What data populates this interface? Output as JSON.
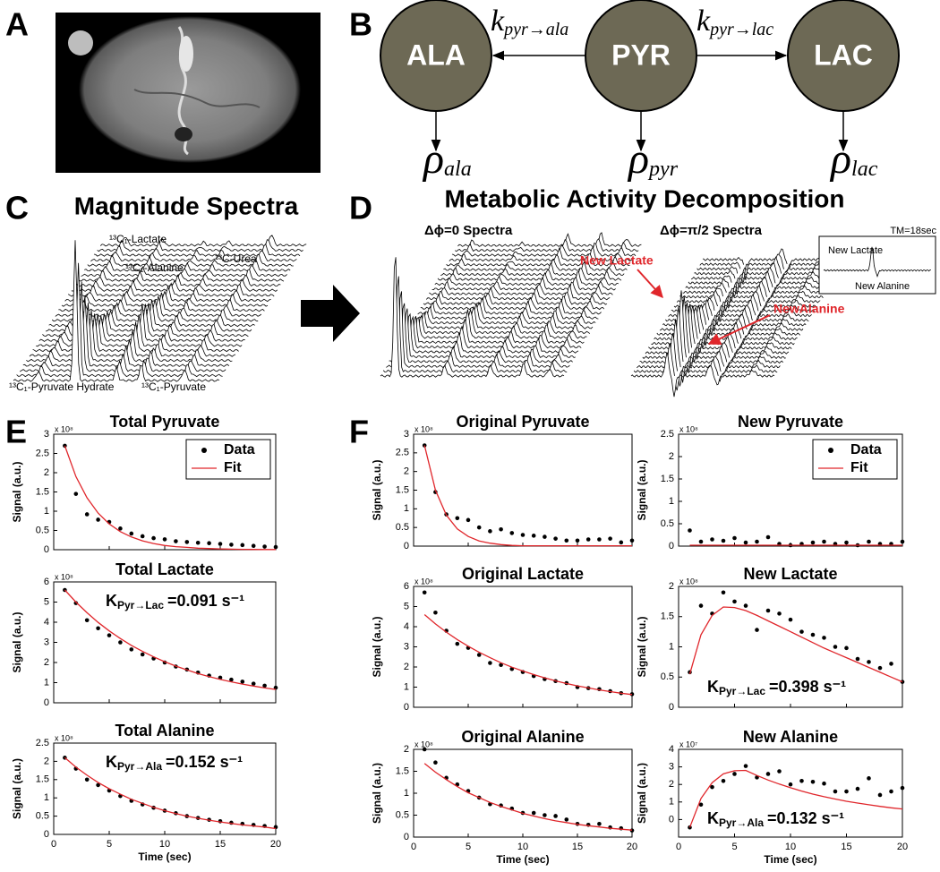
{
  "panel_letters": [
    "A",
    "B",
    "C",
    "D",
    "E",
    "F"
  ],
  "diagram": {
    "nodes": [
      "ALA",
      "PYR",
      "LAC"
    ],
    "rates": [
      {
        "symbol": "k",
        "subscript": "pyr→ala"
      },
      {
        "symbol": "k",
        "subscript": "pyr→lac"
      }
    ],
    "decay": [
      {
        "symbol": "ρ",
        "subscript": "ala"
      },
      {
        "symbol": "ρ",
        "subscript": "pyr"
      },
      {
        "symbol": "ρ",
        "subscript": "lac"
      }
    ]
  },
  "spectra": {
    "magnitude_title": "Magnitude Spectra",
    "magnitude_labels": [
      "¹³C₁-Lactate",
      "¹³C₁-Alanine",
      "¹³C-Urea",
      "¹³C₁-Pyruvate Hydrate",
      "¹³C₁-Pyruvate"
    ],
    "decomposition_title": "Metabolic Activity Decomposition",
    "subtitles": [
      "Δϕ=0 Spectra",
      "Δϕ=π/2 Spectra"
    ],
    "annotations": [
      "New Lactate",
      "NewAlanine"
    ],
    "inset": {
      "title": "TM=18sec",
      "labels": [
        "New Lactate",
        "New Alanine"
      ]
    }
  },
  "chart_data": [
    {
      "type": "scatter",
      "title": "Total Pyruvate",
      "ylabel": "Signal (a.u.)",
      "y_multiplier": "x 10⁸",
      "x": [
        1,
        2,
        3,
        4,
        5,
        6,
        7,
        8,
        9,
        10,
        11,
        12,
        13,
        14,
        15,
        16,
        17,
        18,
        19,
        20
      ],
      "xlim": [
        0,
        20
      ],
      "xticks": [
        0,
        5,
        10,
        15,
        20
      ],
      "xtick_labels": false,
      "ylim": [
        0,
        3
      ],
      "yticks": [
        0,
        0.5,
        1,
        1.5,
        2,
        2.5,
        3
      ],
      "legend": "upper right",
      "series": [
        {
          "name": "Data",
          "color": "#000000",
          "mode": "points",
          "values": [
            2.7,
            1.45,
            0.92,
            0.78,
            0.72,
            0.55,
            0.42,
            0.35,
            0.3,
            0.27,
            0.22,
            0.2,
            0.18,
            0.17,
            0.15,
            0.13,
            0.12,
            0.1,
            0.08,
            0.07
          ]
        },
        {
          "name": "Fit",
          "color": "#e0262b",
          "mode": "line",
          "values": [
            2.7,
            1.9,
            1.35,
            0.95,
            0.67,
            0.47,
            0.33,
            0.23,
            0.16,
            0.11,
            0.08,
            0.06,
            0.04,
            0.03,
            0.02,
            0.015,
            0.01,
            0.007,
            0.005,
            0.004
          ]
        }
      ]
    },
    {
      "type": "scatter",
      "title": "Total Lactate",
      "ylabel": "Signal (a.u.)",
      "y_multiplier": "x 10⁸",
      "x": [
        1,
        2,
        3,
        4,
        5,
        6,
        7,
        8,
        9,
        10,
        11,
        12,
        13,
        14,
        15,
        16,
        17,
        18,
        19,
        20
      ],
      "xlim": [
        0,
        20
      ],
      "xticks": [
        0,
        5,
        10,
        15,
        20
      ],
      "xtick_labels": false,
      "ylim": [
        0,
        6
      ],
      "yticks": [
        0,
        1,
        2,
        3,
        4,
        5,
        6
      ],
      "annotation": {
        "symbol": "K",
        "subscript": "Pyr→Lac",
        "text": "=0.091 s⁻¹"
      },
      "series": [
        {
          "color": "#000000",
          "mode": "points",
          "values": [
            5.6,
            4.95,
            4.1,
            3.7,
            3.35,
            3.0,
            2.65,
            2.4,
            2.2,
            2.0,
            1.8,
            1.65,
            1.5,
            1.35,
            1.25,
            1.15,
            1.05,
            0.95,
            0.85,
            0.75
          ]
        },
        {
          "color": "#e0262b",
          "mode": "line",
          "values": [
            5.6,
            5.0,
            4.47,
            3.99,
            3.57,
            3.19,
            2.85,
            2.55,
            2.28,
            2.04,
            1.82,
            1.63,
            1.45,
            1.3,
            1.16,
            1.04,
            0.93,
            0.83,
            0.74,
            0.66
          ]
        }
      ]
    },
    {
      "type": "scatter",
      "title": "Total Alanine",
      "ylabel": "Signal (a.u.)",
      "y_multiplier": "x 10⁸",
      "xlabel": "Time (sec)",
      "x": [
        1,
        2,
        3,
        4,
        5,
        6,
        7,
        8,
        9,
        10,
        11,
        12,
        13,
        14,
        15,
        16,
        17,
        18,
        19,
        20
      ],
      "xlim": [
        0,
        20
      ],
      "xticks": [
        0,
        5,
        10,
        15,
        20
      ],
      "ylim": [
        0,
        2.5
      ],
      "yticks": [
        0,
        0.5,
        1,
        1.5,
        2,
        2.5
      ],
      "annotation": {
        "symbol": "K",
        "subscript": "Pyr→Ala",
        "text": "=0.152 s⁻¹"
      },
      "series": [
        {
          "color": "#000000",
          "mode": "points",
          "values": [
            2.1,
            1.8,
            1.5,
            1.35,
            1.2,
            1.05,
            0.92,
            0.82,
            0.73,
            0.65,
            0.58,
            0.5,
            0.45,
            0.4,
            0.36,
            0.32,
            0.29,
            0.26,
            0.23,
            0.2
          ]
        },
        {
          "color": "#e0262b",
          "mode": "line",
          "values": [
            2.1,
            1.84,
            1.62,
            1.42,
            1.25,
            1.1,
            0.96,
            0.85,
            0.74,
            0.65,
            0.57,
            0.5,
            0.44,
            0.39,
            0.34,
            0.3,
            0.26,
            0.23,
            0.2,
            0.16
          ]
        }
      ]
    },
    {
      "type": "scatter",
      "title": "Original Pyruvate",
      "ylabel": "Signal (a.u.)",
      "y_multiplier": "x 10⁸",
      "x": [
        1,
        2,
        3,
        4,
        5,
        6,
        7,
        8,
        9,
        10,
        11,
        12,
        13,
        14,
        15,
        16,
        17,
        18,
        19,
        20
      ],
      "xlim": [
        0,
        20
      ],
      "xticks": [
        0,
        5,
        10,
        15,
        20
      ],
      "xtick_labels": false,
      "ylim": [
        0,
        3
      ],
      "yticks": [
        0,
        0.5,
        1,
        1.5,
        2,
        2.5,
        3
      ],
      "series": [
        {
          "color": "#000000",
          "mode": "points",
          "values": [
            2.7,
            1.45,
            0.85,
            0.75,
            0.7,
            0.5,
            0.4,
            0.45,
            0.35,
            0.3,
            0.28,
            0.25,
            0.2,
            0.15,
            0.15,
            0.18,
            0.18,
            0.2,
            0.1,
            0.15
          ]
        },
        {
          "color": "#e0262b",
          "mode": "line",
          "values": [
            2.7,
            1.5,
            0.83,
            0.46,
            0.26,
            0.14,
            0.08,
            0.04,
            0.02,
            0.01,
            0.01,
            0.01,
            0.01,
            0.01,
            0.01,
            0.01,
            0.01,
            0.01,
            0.01,
            0.01
          ]
        }
      ]
    },
    {
      "type": "scatter",
      "title": "New Pyruvate",
      "ylabel": "Signal (a.u.)",
      "y_multiplier": "x 10⁸",
      "x": [
        1,
        2,
        3,
        4,
        5,
        6,
        7,
        8,
        9,
        10,
        11,
        12,
        13,
        14,
        15,
        16,
        17,
        18,
        19,
        20
      ],
      "xlim": [
        0,
        20
      ],
      "xticks": [
        0,
        5,
        10,
        15,
        20
      ],
      "xtick_labels": false,
      "ylim": [
        0,
        2.5
      ],
      "yticks": [
        0,
        0.5,
        1,
        1.5,
        2,
        2.5
      ],
      "legend": "upper right",
      "series": [
        {
          "name": "Data",
          "color": "#000000",
          "mode": "points",
          "values": [
            0.35,
            0.1,
            0.15,
            0.12,
            0.18,
            0.08,
            0.1,
            0.2,
            0.05,
            0.02,
            0.05,
            0.08,
            0.1,
            0.05,
            0.08,
            0.02,
            0.1,
            0.05,
            0.05,
            0.1
          ]
        },
        {
          "name": "Fit",
          "color": "#e0262b",
          "mode": "line",
          "values": [
            0.02,
            0.02,
            0.02,
            0.02,
            0.02,
            0.02,
            0.02,
            0.02,
            0.02,
            0.02,
            0.02,
            0.02,
            0.02,
            0.02,
            0.02,
            0.02,
            0.02,
            0.02,
            0.02,
            0.02
          ]
        }
      ]
    },
    {
      "type": "scatter",
      "title": "Original Lactate",
      "ylabel": "Signal (a.u.)",
      "y_multiplier": "x 10⁸",
      "x": [
        1,
        2,
        3,
        4,
        5,
        6,
        7,
        8,
        9,
        10,
        11,
        12,
        13,
        14,
        15,
        16,
        17,
        18,
        19,
        20
      ],
      "xlim": [
        0,
        20
      ],
      "xticks": [
        0,
        5,
        10,
        15,
        20
      ],
      "xtick_labels": false,
      "ylim": [
        0,
        6
      ],
      "yticks": [
        0,
        1,
        2,
        3,
        4,
        5,
        6
      ],
      "series": [
        {
          "color": "#000000",
          "mode": "points",
          "values": [
            5.7,
            4.7,
            3.8,
            3.15,
            2.95,
            2.6,
            2.2,
            2.1,
            1.9,
            1.75,
            1.55,
            1.4,
            1.3,
            1.2,
            1.0,
            0.95,
            0.9,
            0.8,
            0.7,
            0.65
          ]
        },
        {
          "color": "#e0262b",
          "mode": "line",
          "values": [
            4.6,
            4.14,
            3.73,
            3.36,
            3.03,
            2.73,
            2.46,
            2.21,
            1.99,
            1.8,
            1.62,
            1.46,
            1.31,
            1.18,
            1.06,
            0.96,
            0.86,
            0.78,
            0.7,
            0.63
          ]
        }
      ]
    },
    {
      "type": "scatter",
      "title": "New Lactate",
      "ylabel": "Signal (a.u.)",
      "y_multiplier": "x 10⁸",
      "x": [
        1,
        2,
        3,
        4,
        5,
        6,
        7,
        8,
        9,
        10,
        11,
        12,
        13,
        14,
        15,
        16,
        17,
        18,
        19,
        20
      ],
      "xlim": [
        0,
        20
      ],
      "xticks": [
        0,
        5,
        10,
        15,
        20
      ],
      "xtick_labels": false,
      "ylim": [
        0,
        2
      ],
      "yticks": [
        0,
        0.5,
        1,
        1.5,
        2
      ],
      "annotation": {
        "symbol": "K",
        "subscript": "Pyr→Lac",
        "text": "=0.398 s⁻¹"
      },
      "series": [
        {
          "color": "#000000",
          "mode": "points",
          "values": [
            0.58,
            1.68,
            1.55,
            1.9,
            1.75,
            1.68,
            1.28,
            1.6,
            1.55,
            1.45,
            1.25,
            1.2,
            1.15,
            1.0,
            0.98,
            0.8,
            0.75,
            0.65,
            0.72,
            0.42
          ]
        },
        {
          "color": "#e0262b",
          "mode": "line",
          "values": [
            0.55,
            1.2,
            1.52,
            1.66,
            1.65,
            1.6,
            1.52,
            1.43,
            1.34,
            1.25,
            1.16,
            1.07,
            0.98,
            0.9,
            0.82,
            0.74,
            0.66,
            0.58,
            0.5,
            0.42
          ]
        }
      ]
    },
    {
      "type": "scatter",
      "title": "Original Alanine",
      "ylabel": "Signal (a.u.)",
      "y_multiplier": "x 10⁸",
      "xlabel": "Time (sec)",
      "x": [
        1,
        2,
        3,
        4,
        5,
        6,
        7,
        8,
        9,
        10,
        11,
        12,
        13,
        14,
        15,
        16,
        17,
        18,
        19,
        20
      ],
      "xlim": [
        0,
        20
      ],
      "xticks": [
        0,
        5,
        10,
        15,
        20
      ],
      "ylim": [
        0,
        2
      ],
      "yticks": [
        0,
        0.5,
        1,
        1.5,
        2
      ],
      "series": [
        {
          "color": "#000000",
          "mode": "points",
          "values": [
            2.0,
            1.7,
            1.35,
            1.2,
            1.05,
            0.9,
            0.75,
            0.72,
            0.65,
            0.55,
            0.55,
            0.5,
            0.48,
            0.4,
            0.3,
            0.28,
            0.3,
            0.22,
            0.2,
            0.15
          ]
        },
        {
          "color": "#e0262b",
          "mode": "line",
          "values": [
            1.68,
            1.48,
            1.31,
            1.15,
            1.01,
            0.9,
            0.79,
            0.7,
            0.62,
            0.54,
            0.48,
            0.42,
            0.37,
            0.33,
            0.29,
            0.26,
            0.23,
            0.2,
            0.18,
            0.16
          ]
        }
      ]
    },
    {
      "type": "scatter",
      "title": "New Alanine",
      "ylabel": "Signal (a.u.)",
      "y_multiplier": "x 10⁷",
      "xlabel": "Time (sec)",
      "x": [
        1,
        2,
        3,
        4,
        5,
        6,
        7,
        8,
        9,
        10,
        11,
        12,
        13,
        14,
        15,
        16,
        17,
        18,
        19,
        20
      ],
      "xlim": [
        0,
        20
      ],
      "xticks": [
        0,
        5,
        10,
        15,
        20
      ],
      "ylim": [
        -1,
        4
      ],
      "yticks": [
        0,
        1,
        2,
        3,
        4
      ],
      "annotation": {
        "symbol": "K",
        "subscript": "Pyr→Ala",
        "text": "=0.132 s⁻¹"
      },
      "series": [
        {
          "color": "#000000",
          "mode": "points",
          "values": [
            -0.45,
            0.85,
            1.85,
            2.2,
            2.6,
            3.05,
            2.4,
            2.6,
            2.75,
            2.0,
            2.2,
            2.15,
            2.05,
            1.6,
            1.6,
            1.75,
            2.35,
            1.4,
            1.6,
            1.8
          ]
        },
        {
          "color": "#e0262b",
          "mode": "line",
          "values": [
            -0.45,
            1.2,
            2.1,
            2.6,
            2.78,
            2.8,
            2.51,
            2.25,
            2.02,
            1.81,
            1.62,
            1.45,
            1.3,
            1.17,
            1.04,
            0.94,
            0.84,
            0.75,
            0.67,
            0.6
          ]
        }
      ]
    }
  ]
}
